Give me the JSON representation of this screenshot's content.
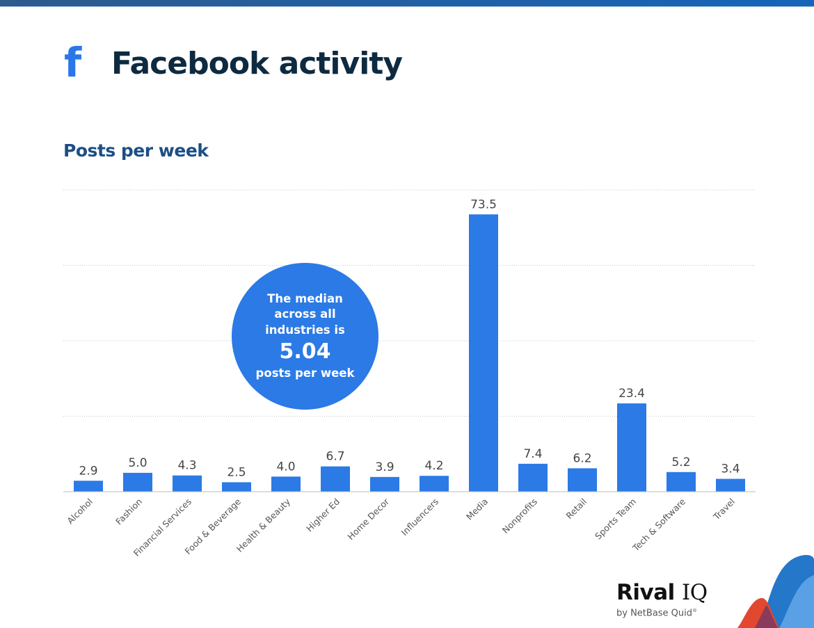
{
  "header": {
    "icon": "facebook-icon",
    "icon_glyph": "f",
    "title": "Facebook activity"
  },
  "chart_data": {
    "type": "bar",
    "title": "Posts per week",
    "categories": [
      "Alcohol",
      "Fashion",
      "Financial Services",
      "Food & Beverage",
      "Health & Beauty",
      "Higher Ed",
      "Home Decor",
      "Influencers",
      "Media",
      "Nonprofits",
      "Retail",
      "Sports Team",
      "Tech & Software",
      "Travel"
    ],
    "values": [
      2.9,
      5.0,
      4.3,
      2.5,
      4.0,
      6.7,
      3.9,
      4.2,
      73.5,
      7.4,
      6.2,
      23.4,
      5.2,
      3.4
    ],
    "data_labels": [
      "2.9",
      "5.0",
      "4.3",
      "2.5",
      "4.0",
      "6.7",
      "3.9",
      "4.2",
      "73.5",
      "7.4",
      "6.2",
      "23.4",
      "5.2",
      "3.4"
    ],
    "xlabel": "",
    "ylabel": "",
    "ylim": [
      0,
      80
    ],
    "grid": true,
    "gridline_step": 20,
    "bar_color": "#2b7ae6"
  },
  "callout": {
    "line1": "The median across all industries is",
    "value": "5.04",
    "line2": "posts per week"
  },
  "logo": {
    "name": "Rival",
    "suffix": "IQ",
    "byline": "by NetBase Quid",
    "mark": "®"
  }
}
